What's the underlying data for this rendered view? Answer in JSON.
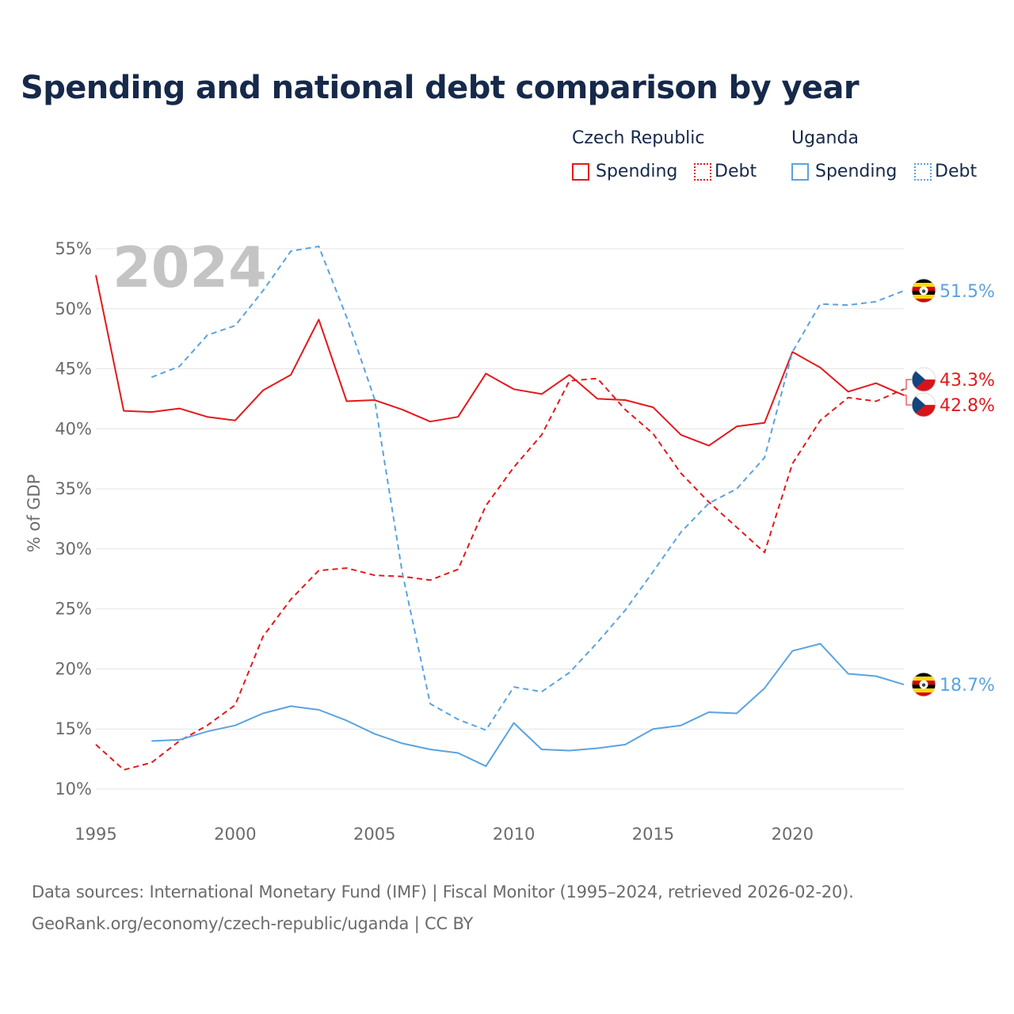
{
  "title": "Spending and national debt comparison by year",
  "legend": {
    "groups": [
      {
        "name": "Czech Republic",
        "items": [
          "Spending",
          "Debt"
        ],
        "color": "#e3191c"
      },
      {
        "name": "Uganda",
        "items": [
          "Spending",
          "Debt"
        ],
        "color": "#5aa3e0"
      }
    ]
  },
  "year_watermark": "2024",
  "footer": {
    "line1": "Data sources: International Monetary Fund (IMF) | Fiscal Monitor (1995–2024, retrieved 2026-02-20).",
    "line2": "GeoRank.org/economy/czech-republic/uganda | CC BY"
  },
  "chart_data": {
    "type": "line",
    "title": "Spending and national debt comparison by year",
    "xlabel": "",
    "ylabel": "% of GDP",
    "xlim": [
      1995,
      2024
    ],
    "ylim": [
      10,
      55
    ],
    "x_ticks": [
      1995,
      2000,
      2005,
      2010,
      2015,
      2020
    ],
    "x_tick_labels": [
      "1995",
      "2000",
      "2005",
      "2010",
      "2015",
      "2020"
    ],
    "y_ticks": [
      10,
      15,
      20,
      25,
      30,
      35,
      40,
      45,
      50,
      55
    ],
    "y_tick_labels": [
      "10%",
      "15%",
      "20%",
      "25%",
      "30%",
      "35%",
      "40%",
      "45%",
      "50%",
      "55%"
    ],
    "grid": true,
    "legend_position": "top-right",
    "series": [
      {
        "name": "Czech Republic Spending",
        "country": "Czech Republic",
        "measure": "Spending",
        "color": "#e3191c",
        "dash": "solid",
        "flag": "czech",
        "x": [
          1995,
          1996,
          1997,
          1998,
          1999,
          2000,
          2001,
          2002,
          2003,
          2004,
          2005,
          2006,
          2007,
          2008,
          2009,
          2010,
          2011,
          2012,
          2013,
          2014,
          2015,
          2016,
          2017,
          2018,
          2019,
          2020,
          2021,
          2022,
          2023,
          2024
        ],
        "values": [
          52.8,
          41.5,
          41.4,
          41.7,
          41.0,
          40.7,
          43.2,
          44.5,
          49.1,
          42.3,
          42.4,
          41.6,
          40.6,
          41.0,
          44.6,
          43.3,
          42.9,
          44.5,
          42.5,
          42.4,
          41.8,
          39.5,
          38.6,
          40.2,
          40.5,
          46.4,
          45.1,
          43.1,
          43.8,
          42.8
        ],
        "end_label": "42.8%"
      },
      {
        "name": "Czech Republic Debt",
        "country": "Czech Republic",
        "measure": "Debt",
        "color": "#e3191c",
        "dash": "dashed",
        "flag": "czech",
        "x": [
          1995,
          1996,
          1997,
          1998,
          1999,
          2000,
          2001,
          2002,
          2003,
          2004,
          2005,
          2006,
          2007,
          2008,
          2009,
          2010,
          2011,
          2012,
          2013,
          2014,
          2015,
          2016,
          2017,
          2018,
          2019,
          2020,
          2021,
          2022,
          2023,
          2024
        ],
        "values": [
          13.7,
          11.6,
          12.2,
          14.0,
          15.3,
          17.0,
          22.7,
          25.8,
          28.2,
          28.4,
          27.8,
          27.7,
          27.4,
          28.3,
          33.6,
          36.8,
          39.5,
          44.0,
          44.2,
          41.6,
          39.6,
          36.3,
          33.9,
          31.8,
          29.7,
          37.1,
          40.7,
          42.6,
          42.3,
          43.3
        ],
        "end_label": "43.3%"
      },
      {
        "name": "Uganda Spending",
        "country": "Uganda",
        "measure": "Spending",
        "color": "#5aa3e0",
        "dash": "solid",
        "flag": "uganda",
        "x": [
          1997,
          1998,
          1999,
          2000,
          2001,
          2002,
          2003,
          2004,
          2005,
          2006,
          2007,
          2008,
          2009,
          2010,
          2011,
          2012,
          2013,
          2014,
          2015,
          2016,
          2017,
          2018,
          2019,
          2020,
          2021,
          2022,
          2023,
          2024
        ],
        "values": [
          14.0,
          14.1,
          14.8,
          15.3,
          16.3,
          16.9,
          16.6,
          15.7,
          14.6,
          13.8,
          13.3,
          13.0,
          11.9,
          15.5,
          13.3,
          13.2,
          13.4,
          13.7,
          15.0,
          15.3,
          16.4,
          16.3,
          18.4,
          21.5,
          22.1,
          19.6,
          19.4,
          18.7
        ],
        "end_label": "18.7%"
      },
      {
        "name": "Uganda Debt",
        "country": "Uganda",
        "measure": "Debt",
        "color": "#5aa3e0",
        "dash": "dashed",
        "flag": "uganda",
        "x": [
          1997,
          1998,
          1999,
          2000,
          2001,
          2002,
          2003,
          2004,
          2005,
          2006,
          2007,
          2008,
          2009,
          2010,
          2011,
          2012,
          2013,
          2014,
          2015,
          2016,
          2017,
          2018,
          2019,
          2020,
          2021,
          2022,
          2023,
          2024
        ],
        "values": [
          44.3,
          45.2,
          47.8,
          48.6,
          51.5,
          54.8,
          55.2,
          49.3,
          42.5,
          28.0,
          17.1,
          15.8,
          14.9,
          18.5,
          18.1,
          19.7,
          22.2,
          24.9,
          28.1,
          31.4,
          33.8,
          35.0,
          37.6,
          46.4,
          50.4,
          50.3,
          50.6,
          51.5
        ],
        "end_label": "51.5%"
      }
    ]
  }
}
